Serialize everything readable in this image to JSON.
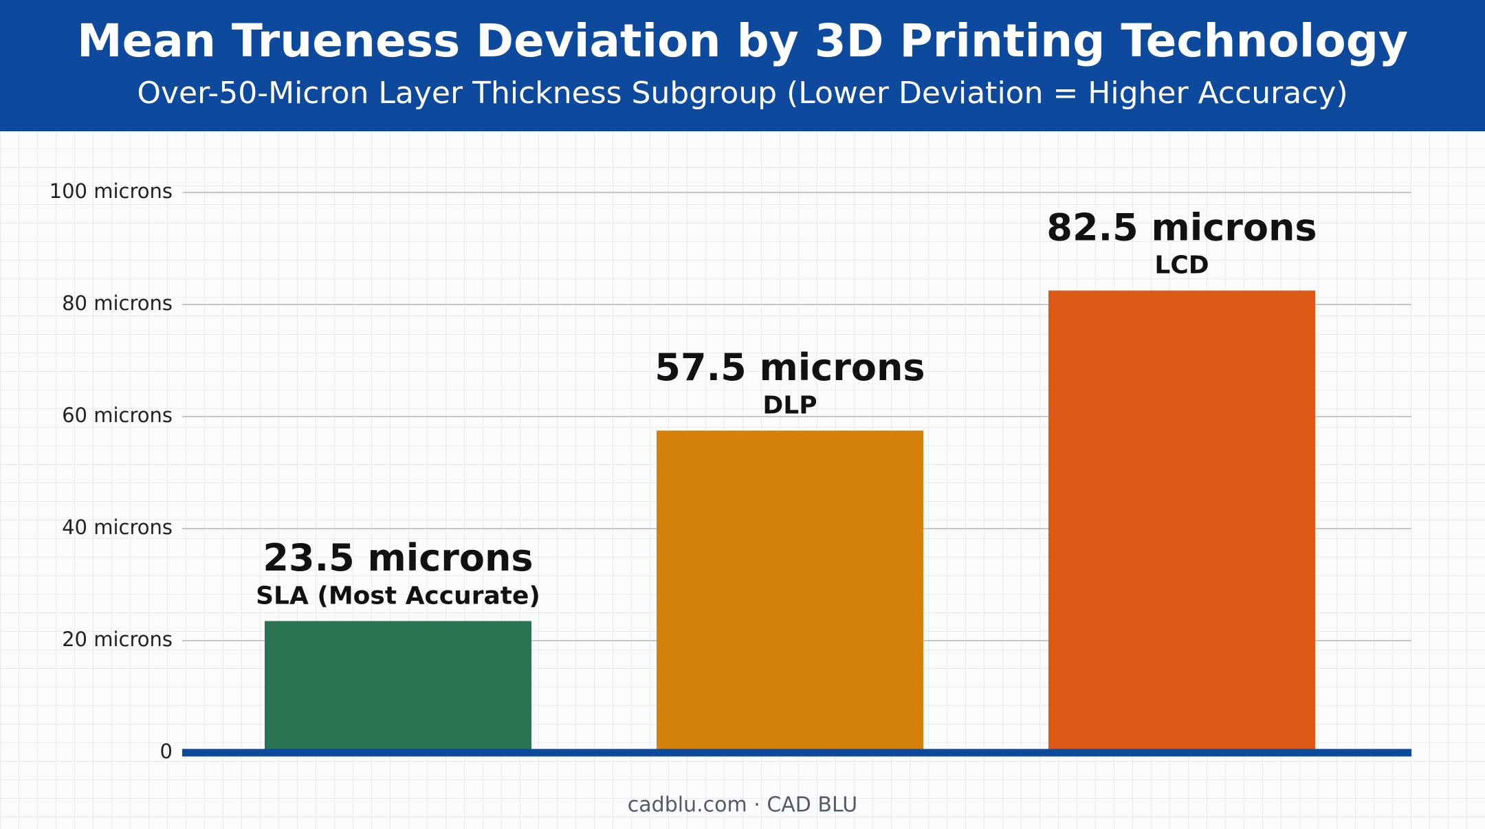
{
  "chart_data": {
    "type": "bar",
    "title": "Mean Trueness Deviation by 3D Printing Technology",
    "subtitle": "Over-50-Micron Layer Thickness Subgroup (Lower Deviation = Higher Accuracy)",
    "categories": [
      "SLA (Most Accurate)",
      "DLP",
      "LCD"
    ],
    "values": [
      23.5,
      57.5,
      82.5
    ],
    "value_labels": [
      "23.5 microns",
      "57.5 microns",
      "82.5 microns"
    ],
    "colors": [
      "#2a7352",
      "#d4820b",
      "#dc5815"
    ],
    "ylim": [
      0,
      100
    ],
    "yticks": [
      0,
      {
        "value": 20,
        "label": "20 microns"
      },
      {
        "value": 40,
        "label": "40 microns"
      },
      {
        "value": 60,
        "label": "60 microns"
      },
      {
        "value": 80,
        "label": "80 microns"
      },
      {
        "value": 100,
        "label": "100 microns"
      }
    ],
    "grid": true,
    "footer": "cadblu.com · CAD BLU"
  }
}
